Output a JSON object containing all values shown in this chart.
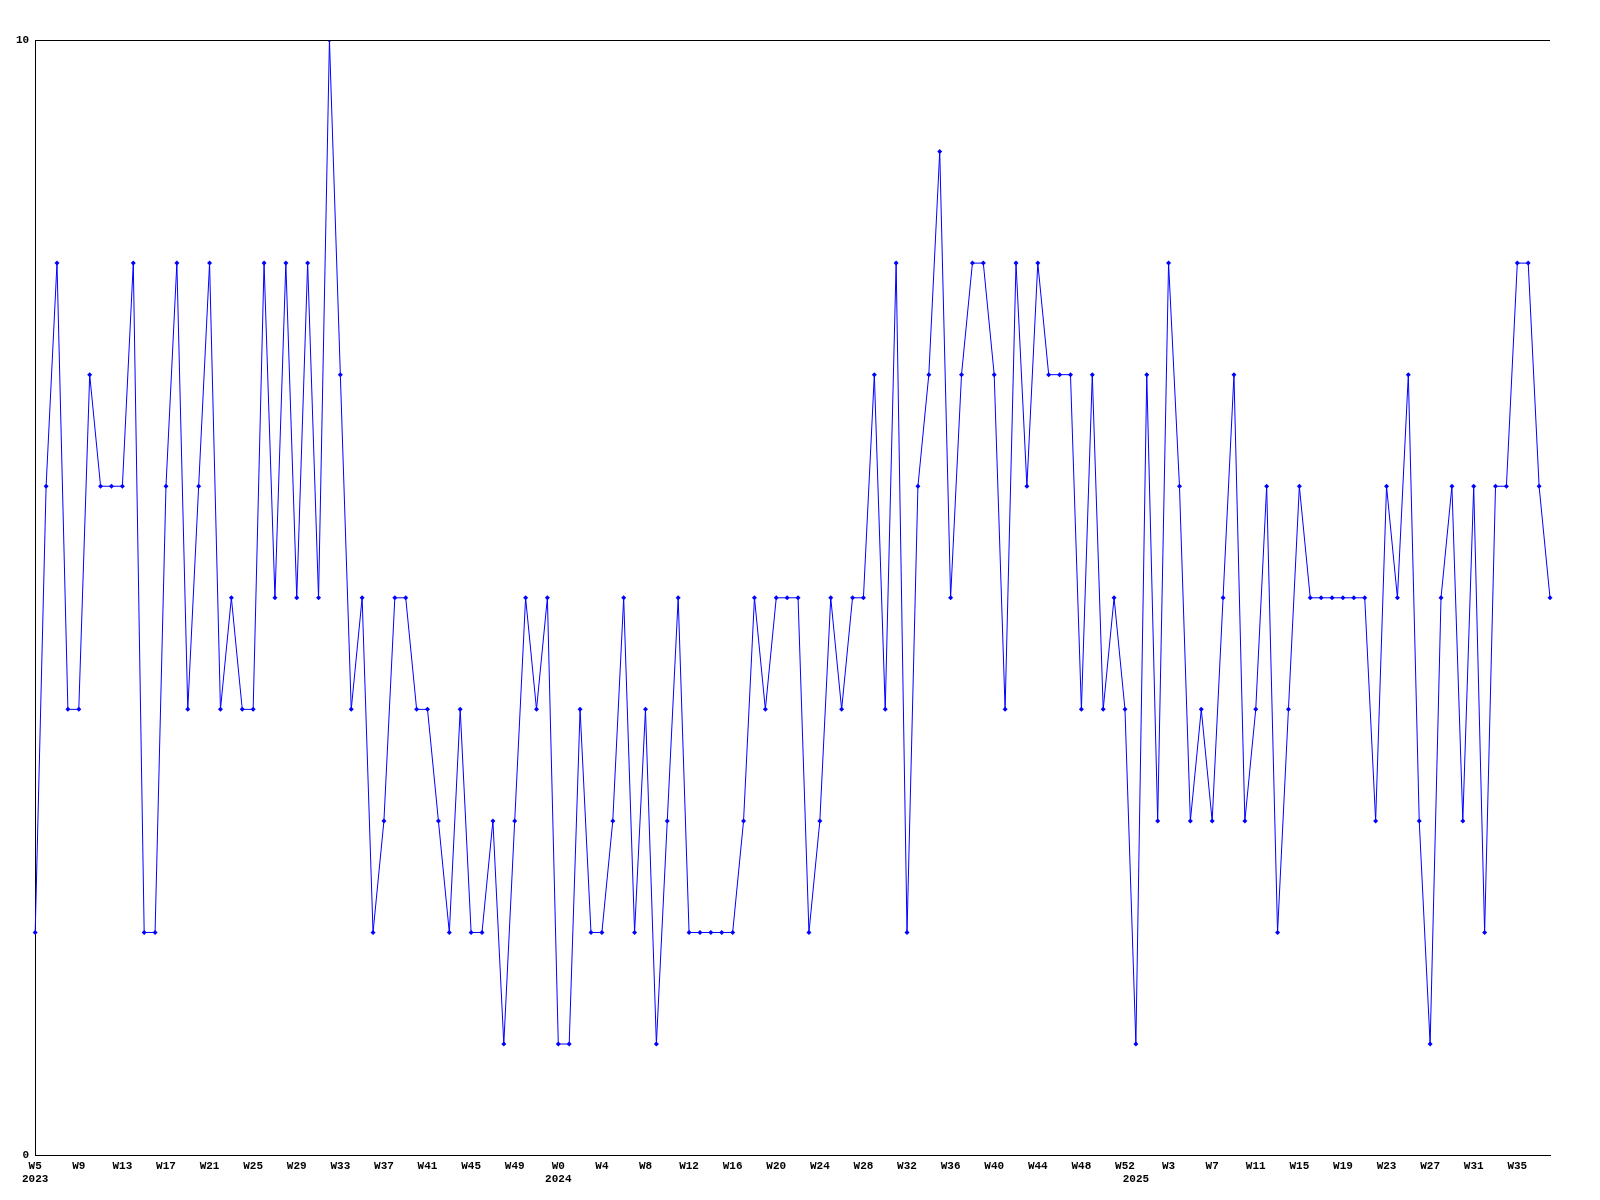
{
  "chart_data": {
    "type": "line",
    "categories": [
      "W5\n2023",
      null,
      null,
      null,
      "W9",
      null,
      null,
      null,
      "W13",
      null,
      null,
      null,
      "W17",
      null,
      null,
      null,
      "W21",
      null,
      null,
      null,
      "W25",
      null,
      null,
      null,
      "W29",
      null,
      null,
      null,
      "W33",
      null,
      null,
      null,
      "W37",
      null,
      null,
      null,
      "W41",
      null,
      null,
      null,
      "W45",
      null,
      null,
      null,
      "W49",
      null,
      null,
      null,
      "W0\n2024",
      null,
      null,
      null,
      "W4",
      null,
      null,
      null,
      "W8",
      null,
      null,
      null,
      "W12",
      null,
      null,
      null,
      "W16",
      null,
      null,
      null,
      "W20",
      null,
      null,
      null,
      "W24",
      null,
      null,
      null,
      "W28",
      null,
      null,
      null,
      "W32",
      null,
      null,
      null,
      "W36",
      null,
      null,
      null,
      "W40",
      null,
      null,
      null,
      "W44",
      null,
      null,
      null,
      "W48",
      null,
      null,
      null,
      "W52",
      "\n2025",
      null,
      null,
      "W3",
      null,
      null,
      null,
      "W7",
      null,
      null,
      null,
      "W11",
      null,
      null,
      null,
      "W15",
      null,
      null,
      null,
      "W19",
      null,
      null,
      null,
      "W23",
      null,
      null,
      null,
      "W27",
      null,
      null,
      null,
      "W31",
      null,
      null,
      null,
      "W35",
      null,
      null,
      null
    ],
    "series": [
      {
        "color": "#0000ff",
        "values": [
          2,
          6,
          8,
          4,
          4,
          7,
          6,
          6,
          6,
          8,
          2,
          2,
          6,
          8,
          4,
          6,
          8,
          4,
          5,
          4,
          4,
          8,
          5,
          8,
          5,
          8,
          5,
          10,
          7,
          4,
          5,
          2,
          3,
          5,
          5,
          4,
          4,
          3,
          2,
          4,
          2,
          2,
          3,
          1,
          3,
          5,
          4,
          5,
          1,
          1,
          4,
          2,
          2,
          3,
          5,
          2,
          4,
          1,
          3,
          5,
          2,
          2,
          2,
          2,
          2,
          3,
          5,
          4,
          5,
          5,
          5,
          2,
          3,
          5,
          4,
          5,
          5,
          7,
          4,
          8,
          2,
          6,
          7,
          9,
          5,
          7,
          8,
          8,
          7,
          4,
          8,
          6,
          8,
          7,
          7,
          7,
          4,
          7,
          4,
          5,
          4,
          1,
          7,
          3,
          8,
          6,
          3,
          4,
          3,
          5,
          7,
          3,
          4,
          6,
          2,
          4,
          6,
          5,
          5,
          5,
          5,
          5,
          5,
          3,
          6,
          5,
          7,
          3,
          1,
          5,
          6,
          3,
          6,
          2,
          6,
          6,
          8,
          8,
          6,
          5
        ]
      }
    ],
    "ylim": [
      0,
      10
    ],
    "yticks": [
      0,
      10
    ],
    "grid": false,
    "legend": false,
    "marker": "diamond",
    "line_style": "solid"
  }
}
